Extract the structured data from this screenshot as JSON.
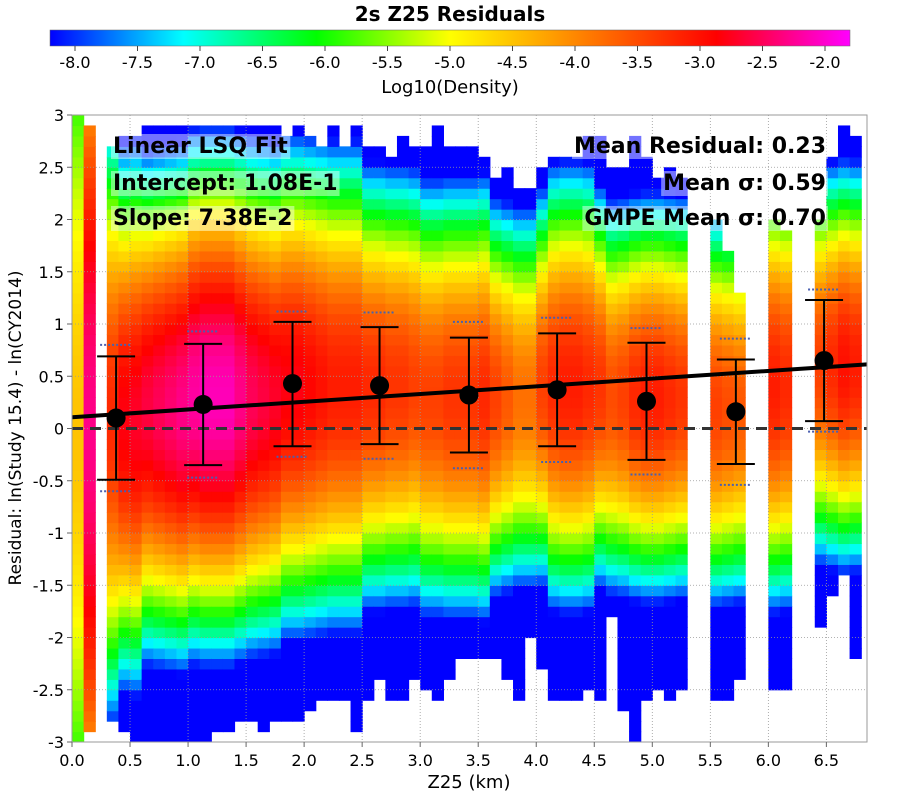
{
  "chart_data": {
    "type": "heatmap",
    "title": "2s Z25 Residuals",
    "colorbar": {
      "label": "Log10(Density)",
      "min": -8.2,
      "max": -1.8,
      "ticks": [
        "-8.0",
        "-7.5",
        "-7.0",
        "-6.5",
        "-6.0",
        "-5.5",
        "-5.0",
        "-4.5",
        "-4.0",
        "-3.5",
        "-3.0",
        "-2.5",
        "-2.0"
      ]
    },
    "xlabel": "Z25 (km)",
    "ylabel": "Residual: ln(Study 15.4) - ln(CY2014)",
    "xlim": [
      0,
      6.85
    ],
    "ylim": [
      -3,
      3
    ],
    "xticks": [
      "0.0",
      "0.5",
      "1.0",
      "1.5",
      "2.0",
      "2.5",
      "3.0",
      "3.5",
      "4.0",
      "4.5",
      "5.0",
      "5.5",
      "6.0",
      "6.5"
    ],
    "yticks": [
      "-3",
      "-2.5",
      "-2",
      "-1.5",
      "-1",
      "-0.5",
      "0",
      "0.5",
      "1",
      "1.5",
      "2",
      "2.5",
      "3"
    ],
    "grid": "dotted",
    "annotations_left": [
      "Linear LSQ Fit",
      "Intercept: 1.08E-1",
      "Slope: 7.38E-2"
    ],
    "annotations_right": [
      "Mean Residual: 0.23",
      "Mean σ: 0.59",
      "GMPE Mean σ: 0.70"
    ],
    "fit": {
      "intercept": 0.108,
      "slope": 0.0738
    },
    "zero_line": 0,
    "bins": [
      {
        "x": 0.38,
        "mean": 0.1,
        "lower": -0.49,
        "upper": 0.69,
        "gmpe_lower": -0.6,
        "gmpe_upper": 0.8
      },
      {
        "x": 1.13,
        "mean": 0.23,
        "lower": -0.35,
        "upper": 0.81,
        "gmpe_lower": -0.47,
        "gmpe_upper": 0.93
      },
      {
        "x": 1.9,
        "mean": 0.43,
        "lower": -0.17,
        "upper": 1.02,
        "gmpe_lower": -0.27,
        "gmpe_upper": 1.12
      },
      {
        "x": 2.65,
        "mean": 0.41,
        "lower": -0.15,
        "upper": 0.97,
        "gmpe_lower": -0.29,
        "gmpe_upper": 1.11
      },
      {
        "x": 3.42,
        "mean": 0.32,
        "lower": -0.23,
        "upper": 0.87,
        "gmpe_lower": -0.38,
        "gmpe_upper": 1.02
      },
      {
        "x": 4.18,
        "mean": 0.37,
        "lower": -0.17,
        "upper": 0.91,
        "gmpe_lower": -0.32,
        "gmpe_upper": 1.06
      },
      {
        "x": 4.95,
        "mean": 0.26,
        "lower": -0.3,
        "upper": 0.82,
        "gmpe_lower": -0.44,
        "gmpe_upper": 0.96
      },
      {
        "x": 5.72,
        "mean": 0.16,
        "lower": -0.34,
        "upper": 0.66,
        "gmpe_lower": -0.54,
        "gmpe_upper": 0.86
      },
      {
        "x": 6.48,
        "mean": 0.65,
        "lower": 0.07,
        "upper": 1.23,
        "gmpe_lower": -0.03,
        "gmpe_upper": 1.33
      }
    ],
    "heatmap": {
      "column_width_km": 0.1,
      "cell_height": 0.1,
      "columns": [
        {
          "x0": 0.0,
          "ylo": -3.0,
          "yhi": 3.0,
          "peak": -4.5,
          "mu": 0.0,
          "sd": 3.0
        },
        {
          "x0": 0.1,
          "ylo": -2.9,
          "yhi": 2.9,
          "peak": -2.3,
          "mu": 0.0,
          "sd": 2.6
        },
        {
          "x0": 0.3,
          "ylo": -2.8,
          "yhi": 2.7,
          "peak": -3.2,
          "mu": 0.1,
          "sd": 1.5
        },
        {
          "x0": 0.4,
          "ylo": -2.9,
          "yhi": 2.8,
          "peak": -2.8,
          "mu": 0.1,
          "sd": 1.3
        },
        {
          "x0": 0.5,
          "ylo": -3.0,
          "yhi": 2.8,
          "peak": -2.7,
          "mu": 0.1,
          "sd": 1.3
        },
        {
          "x0": 0.6,
          "ylo": -3.0,
          "yhi": 2.9,
          "peak": -2.6,
          "mu": 0.2,
          "sd": 1.2
        },
        {
          "x0": 0.7,
          "ylo": -3.0,
          "yhi": 2.9,
          "peak": -2.5,
          "mu": 0.2,
          "sd": 1.2
        },
        {
          "x0": 0.8,
          "ylo": -3.0,
          "yhi": 2.9,
          "peak": -2.4,
          "mu": 0.2,
          "sd": 1.2
        },
        {
          "x0": 0.9,
          "ylo": -3.0,
          "yhi": 2.9,
          "peak": -2.3,
          "mu": 0.2,
          "sd": 1.2
        },
        {
          "x0": 1.0,
          "ylo": -3.0,
          "yhi": 2.9,
          "peak": -2.2,
          "mu": 0.3,
          "sd": 1.2
        },
        {
          "x0": 1.1,
          "ylo": -3.0,
          "yhi": 2.9,
          "peak": -2.1,
          "mu": 0.3,
          "sd": 1.2
        },
        {
          "x0": 1.2,
          "ylo": -2.9,
          "yhi": 2.9,
          "peak": -2.1,
          "mu": 0.3,
          "sd": 1.2
        },
        {
          "x0": 1.3,
          "ylo": -2.9,
          "yhi": 2.9,
          "peak": -2.1,
          "mu": 0.3,
          "sd": 1.2
        },
        {
          "x0": 1.4,
          "ylo": -2.8,
          "yhi": 2.9,
          "peak": -2.3,
          "mu": 0.3,
          "sd": 1.2
        },
        {
          "x0": 1.5,
          "ylo": -2.8,
          "yhi": 2.9,
          "peak": -2.5,
          "mu": 0.3,
          "sd": 1.2
        },
        {
          "x0": 1.6,
          "ylo": -2.9,
          "yhi": 2.9,
          "peak": -2.6,
          "mu": 0.3,
          "sd": 1.2
        },
        {
          "x0": 1.7,
          "ylo": -2.8,
          "yhi": 2.9,
          "peak": -2.7,
          "mu": 0.3,
          "sd": 1.2
        },
        {
          "x0": 1.8,
          "ylo": -2.8,
          "yhi": 2.8,
          "peak": -2.8,
          "mu": 0.4,
          "sd": 1.2
        },
        {
          "x0": 1.9,
          "ylo": -2.8,
          "yhi": 2.9,
          "peak": -2.8,
          "mu": 0.4,
          "sd": 1.2
        },
        {
          "x0": 2.0,
          "ylo": -2.7,
          "yhi": 2.8,
          "peak": -2.9,
          "mu": 0.4,
          "sd": 1.2
        },
        {
          "x0": 2.1,
          "ylo": -2.6,
          "yhi": 2.7,
          "peak": -3.0,
          "mu": 0.4,
          "sd": 1.2
        },
        {
          "x0": 2.2,
          "ylo": -2.6,
          "yhi": 2.9,
          "peak": -3.1,
          "mu": 0.4,
          "sd": 1.2
        },
        {
          "x0": 2.3,
          "ylo": -2.6,
          "yhi": 2.7,
          "peak": -3.1,
          "mu": 0.4,
          "sd": 1.2
        },
        {
          "x0": 2.4,
          "ylo": -2.9,
          "yhi": 2.9,
          "peak": -3.1,
          "mu": 0.4,
          "sd": 1.2
        },
        {
          "x0": 2.5,
          "ylo": -2.6,
          "yhi": 2.7,
          "peak": -3.2,
          "mu": 0.4,
          "sd": 1.1
        },
        {
          "x0": 2.6,
          "ylo": -2.4,
          "yhi": 2.7,
          "peak": -3.2,
          "mu": 0.4,
          "sd": 1.1
        },
        {
          "x0": 2.7,
          "ylo": -2.6,
          "yhi": 2.6,
          "peak": -3.3,
          "mu": 0.4,
          "sd": 1.1
        },
        {
          "x0": 2.8,
          "ylo": -2.6,
          "yhi": 2.8,
          "peak": -3.3,
          "mu": 0.4,
          "sd": 1.1
        },
        {
          "x0": 2.9,
          "ylo": -2.4,
          "yhi": 2.7,
          "peak": -3.4,
          "mu": 0.4,
          "sd": 1.1
        },
        {
          "x0": 3.0,
          "ylo": -2.5,
          "yhi": 2.7,
          "peak": -3.4,
          "mu": 0.3,
          "sd": 1.1
        },
        {
          "x0": 3.1,
          "ylo": -2.6,
          "yhi": 2.9,
          "peak": -3.4,
          "mu": 0.3,
          "sd": 1.1
        },
        {
          "x0": 3.2,
          "ylo": -2.4,
          "yhi": 2.7,
          "peak": -3.3,
          "mu": 0.3,
          "sd": 1.1
        },
        {
          "x0": 3.3,
          "ylo": -2.2,
          "yhi": 2.7,
          "peak": -3.3,
          "mu": 0.3,
          "sd": 1.1
        },
        {
          "x0": 3.4,
          "ylo": -2.2,
          "yhi": 2.7,
          "peak": -3.3,
          "mu": 0.3,
          "sd": 1.1
        },
        {
          "x0": 3.5,
          "ylo": -2.2,
          "yhi": 2.6,
          "peak": -3.2,
          "mu": 0.3,
          "sd": 1.1
        },
        {
          "x0": 3.6,
          "ylo": -2.2,
          "yhi": 2.4,
          "peak": -3.4,
          "mu": 0.3,
          "sd": 1.0
        },
        {
          "x0": 3.7,
          "ylo": -2.4,
          "yhi": 2.5,
          "peak": -3.6,
          "mu": 0.3,
          "sd": 1.0
        },
        {
          "x0": 3.8,
          "ylo": -2.6,
          "yhi": 2.3,
          "peak": -3.8,
          "mu": 0.3,
          "sd": 1.0
        },
        {
          "x0": 3.9,
          "ylo": -2.0,
          "yhi": 2.3,
          "peak": -3.8,
          "mu": 0.3,
          "sd": 1.0
        },
        {
          "x0": 4.0,
          "ylo": -2.3,
          "yhi": 2.5,
          "peak": -3.4,
          "mu": 0.4,
          "sd": 1.0
        },
        {
          "x0": 4.1,
          "ylo": -2.6,
          "yhi": 2.6,
          "peak": -3.2,
          "mu": 0.4,
          "sd": 1.1
        },
        {
          "x0": 4.2,
          "ylo": -2.6,
          "yhi": 2.6,
          "peak": -3.1,
          "mu": 0.4,
          "sd": 1.1
        },
        {
          "x0": 4.3,
          "ylo": -2.6,
          "yhi": 2.6,
          "peak": -3.1,
          "mu": 0.4,
          "sd": 1.1
        },
        {
          "x0": 4.4,
          "ylo": -2.5,
          "yhi": 2.8,
          "peak": -3.2,
          "mu": 0.4,
          "sd": 1.1
        },
        {
          "x0": 4.5,
          "ylo": -2.6,
          "yhi": 2.8,
          "peak": -3.3,
          "mu": 0.4,
          "sd": 1.0
        },
        {
          "x0": 4.6,
          "ylo": -1.8,
          "yhi": 2.5,
          "peak": -3.5,
          "mu": 0.3,
          "sd": 1.0
        },
        {
          "x0": 4.7,
          "ylo": -2.7,
          "yhi": 2.5,
          "peak": -3.4,
          "mu": 0.3,
          "sd": 1.0
        },
        {
          "x0": 4.8,
          "ylo": -3.0,
          "yhi": 2.8,
          "peak": -3.2,
          "mu": 0.3,
          "sd": 1.0
        },
        {
          "x0": 4.9,
          "ylo": -2.6,
          "yhi": 2.6,
          "peak": -3.1,
          "mu": 0.3,
          "sd": 1.0
        },
        {
          "x0": 5.0,
          "ylo": -2.5,
          "yhi": 2.4,
          "peak": -3.1,
          "mu": 0.3,
          "sd": 1.0
        },
        {
          "x0": 5.1,
          "ylo": -2.6,
          "yhi": 2.5,
          "peak": -3.2,
          "mu": 0.3,
          "sd": 1.0
        },
        {
          "x0": 5.2,
          "ylo": -2.5,
          "yhi": 2.4,
          "peak": -3.3,
          "mu": 0.3,
          "sd": 1.0
        },
        {
          "x0": 5.5,
          "ylo": -2.6,
          "yhi": 2.0,
          "peak": -3.4,
          "mu": 0.2,
          "sd": 1.0
        },
        {
          "x0": 5.6,
          "ylo": -2.6,
          "yhi": 1.7,
          "peak": -3.5,
          "mu": 0.2,
          "sd": 1.0
        },
        {
          "x0": 5.7,
          "ylo": -2.4,
          "yhi": 1.3,
          "peak": -3.6,
          "mu": 0.2,
          "sd": 1.0
        },
        {
          "x0": 6.0,
          "ylo": -2.5,
          "yhi": 2.0,
          "peak": -3.1,
          "mu": 0.4,
          "sd": 1.1
        },
        {
          "x0": 6.1,
          "ylo": -2.5,
          "yhi": 1.9,
          "peak": -3.2,
          "mu": 0.4,
          "sd": 1.1
        },
        {
          "x0": 6.4,
          "ylo": -1.9,
          "yhi": 2.0,
          "peak": -3.4,
          "mu": 0.6,
          "sd": 1.0
        },
        {
          "x0": 6.5,
          "ylo": -1.6,
          "yhi": 2.6,
          "peak": -3.2,
          "mu": 0.6,
          "sd": 1.0
        },
        {
          "x0": 6.6,
          "ylo": -1.4,
          "yhi": 2.9,
          "peak": -3.0,
          "mu": 0.6,
          "sd": 1.0
        },
        {
          "x0": 6.7,
          "ylo": -2.2,
          "yhi": 2.8,
          "peak": -3.1,
          "mu": 0.6,
          "sd": 1.0
        }
      ]
    }
  }
}
